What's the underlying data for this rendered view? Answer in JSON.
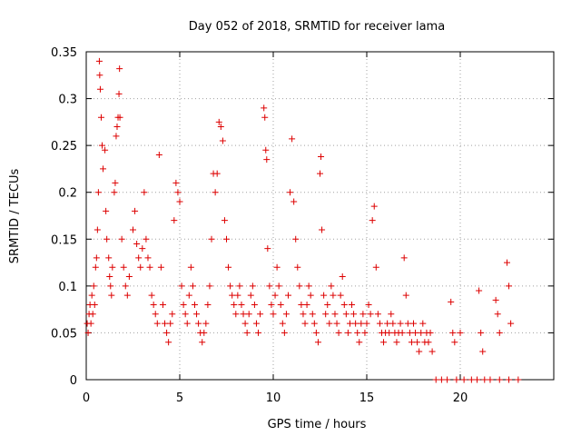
{
  "chart_data": {
    "type": "scatter",
    "title": "Day 052 of 2018, SRMTID for receiver lama",
    "xlabel": "GPS time / hours",
    "ylabel": "SRMTID / TECUs",
    "xlim": [
      0,
      25
    ],
    "ylim": [
      0,
      0.35
    ],
    "xticks": [
      0,
      5,
      10,
      15,
      20
    ],
    "xtick_labels": [
      "0",
      "5",
      "10",
      "15",
      "20"
    ],
    "yticks": [
      0,
      0.05,
      0.1,
      0.15,
      0.2,
      0.25,
      0.3,
      0.35
    ],
    "ytick_labels": [
      "0",
      "0.05",
      "0.1",
      "0.15",
      "0.2",
      "0.25",
      "0.3",
      "0.35"
    ],
    "grid": true,
    "marker": "+",
    "color": "#dd0000",
    "series": [
      {
        "name": "SRMTID",
        "points": [
          [
            0.05,
            0.06
          ],
          [
            0.1,
            0.05
          ],
          [
            0.15,
            0.07
          ],
          [
            0.2,
            0.08
          ],
          [
            0.25,
            0.06
          ],
          [
            0.3,
            0.09
          ],
          [
            0.35,
            0.07
          ],
          [
            0.4,
            0.1
          ],
          [
            0.45,
            0.08
          ],
          [
            0.5,
            0.12
          ],
          [
            0.55,
            0.13
          ],
          [
            0.6,
            0.16
          ],
          [
            0.65,
            0.2
          ],
          [
            0.7,
            0.34
          ],
          [
            0.72,
            0.325
          ],
          [
            0.75,
            0.31
          ],
          [
            0.8,
            0.28
          ],
          [
            0.85,
            0.25
          ],
          [
            0.9,
            0.225
          ],
          [
            1.0,
            0.245
          ],
          [
            1.05,
            0.18
          ],
          [
            1.1,
            0.15
          ],
          [
            1.2,
            0.13
          ],
          [
            1.25,
            0.11
          ],
          [
            1.3,
            0.1
          ],
          [
            1.35,
            0.09
          ],
          [
            1.4,
            0.12
          ],
          [
            1.5,
            0.2
          ],
          [
            1.55,
            0.21
          ],
          [
            1.6,
            0.26
          ],
          [
            1.65,
            0.27
          ],
          [
            1.7,
            0.28
          ],
          [
            1.75,
            0.305
          ],
          [
            1.78,
            0.332
          ],
          [
            1.8,
            0.28
          ],
          [
            1.9,
            0.15
          ],
          [
            2.0,
            0.12
          ],
          [
            2.1,
            0.1
          ],
          [
            2.2,
            0.09
          ],
          [
            2.3,
            0.11
          ],
          [
            2.5,
            0.16
          ],
          [
            2.6,
            0.18
          ],
          [
            2.7,
            0.145
          ],
          [
            2.8,
            0.13
          ],
          [
            2.9,
            0.12
          ],
          [
            3.0,
            0.14
          ],
          [
            3.1,
            0.2
          ],
          [
            3.2,
            0.15
          ],
          [
            3.3,
            0.13
          ],
          [
            3.4,
            0.12
          ],
          [
            3.5,
            0.09
          ],
          [
            3.6,
            0.08
          ],
          [
            3.7,
            0.07
          ],
          [
            3.8,
            0.06
          ],
          [
            3.9,
            0.24
          ],
          [
            4.0,
            0.12
          ],
          [
            4.1,
            0.08
          ],
          [
            4.2,
            0.06
          ],
          [
            4.3,
            0.05
          ],
          [
            4.4,
            0.04
          ],
          [
            4.5,
            0.06
          ],
          [
            4.6,
            0.07
          ],
          [
            4.7,
            0.17
          ],
          [
            4.8,
            0.21
          ],
          [
            4.9,
            0.2
          ],
          [
            5.0,
            0.19
          ],
          [
            5.1,
            0.1
          ],
          [
            5.2,
            0.08
          ],
          [
            5.3,
            0.07
          ],
          [
            5.4,
            0.06
          ],
          [
            5.5,
            0.09
          ],
          [
            5.6,
            0.12
          ],
          [
            5.7,
            0.1
          ],
          [
            5.8,
            0.08
          ],
          [
            5.9,
            0.07
          ],
          [
            6.0,
            0.06
          ],
          [
            6.1,
            0.05
          ],
          [
            6.2,
            0.04
          ],
          [
            6.3,
            0.05
          ],
          [
            6.4,
            0.06
          ],
          [
            6.5,
            0.08
          ],
          [
            6.6,
            0.1
          ],
          [
            6.7,
            0.15
          ],
          [
            6.8,
            0.22
          ],
          [
            6.9,
            0.2
          ],
          [
            7.0,
            0.22
          ],
          [
            7.1,
            0.275
          ],
          [
            7.2,
            0.27
          ],
          [
            7.3,
            0.255
          ],
          [
            7.4,
            0.17
          ],
          [
            7.5,
            0.15
          ],
          [
            7.6,
            0.12
          ],
          [
            7.7,
            0.1
          ],
          [
            7.8,
            0.09
          ],
          [
            7.9,
            0.08
          ],
          [
            8.0,
            0.07
          ],
          [
            8.1,
            0.09
          ],
          [
            8.2,
            0.1
          ],
          [
            8.3,
            0.08
          ],
          [
            8.4,
            0.07
          ],
          [
            8.5,
            0.06
          ],
          [
            8.6,
            0.05
          ],
          [
            8.7,
            0.07
          ],
          [
            8.8,
            0.09
          ],
          [
            8.9,
            0.1
          ],
          [
            9.0,
            0.08
          ],
          [
            9.1,
            0.06
          ],
          [
            9.2,
            0.05
          ],
          [
            9.3,
            0.07
          ],
          [
            9.5,
            0.29
          ],
          [
            9.55,
            0.28
          ],
          [
            9.6,
            0.245
          ],
          [
            9.65,
            0.235
          ],
          [
            9.7,
            0.14
          ],
          [
            9.8,
            0.1
          ],
          [
            9.9,
            0.08
          ],
          [
            10.0,
            0.07
          ],
          [
            10.1,
            0.09
          ],
          [
            10.2,
            0.12
          ],
          [
            10.3,
            0.1
          ],
          [
            10.4,
            0.08
          ],
          [
            10.5,
            0.06
          ],
          [
            10.6,
            0.05
          ],
          [
            10.7,
            0.07
          ],
          [
            10.8,
            0.09
          ],
          [
            10.9,
            0.2
          ],
          [
            11.0,
            0.257
          ],
          [
            11.1,
            0.19
          ],
          [
            11.2,
            0.15
          ],
          [
            11.3,
            0.12
          ],
          [
            11.4,
            0.1
          ],
          [
            11.5,
            0.08
          ],
          [
            11.6,
            0.07
          ],
          [
            11.7,
            0.06
          ],
          [
            11.8,
            0.08
          ],
          [
            11.9,
            0.1
          ],
          [
            12.0,
            0.09
          ],
          [
            12.1,
            0.07
          ],
          [
            12.2,
            0.06
          ],
          [
            12.3,
            0.05
          ],
          [
            12.4,
            0.04
          ],
          [
            12.5,
            0.22
          ],
          [
            12.55,
            0.238
          ],
          [
            12.6,
            0.16
          ],
          [
            12.7,
            0.09
          ],
          [
            12.8,
            0.07
          ],
          [
            12.9,
            0.08
          ],
          [
            13.0,
            0.06
          ],
          [
            13.1,
            0.1
          ],
          [
            13.2,
            0.09
          ],
          [
            13.3,
            0.07
          ],
          [
            13.4,
            0.06
          ],
          [
            13.5,
            0.05
          ],
          [
            13.6,
            0.09
          ],
          [
            13.7,
            0.11
          ],
          [
            13.8,
            0.08
          ],
          [
            13.9,
            0.07
          ],
          [
            14.0,
            0.05
          ],
          [
            14.1,
            0.06
          ],
          [
            14.2,
            0.08
          ],
          [
            14.3,
            0.07
          ],
          [
            14.4,
            0.06
          ],
          [
            14.5,
            0.05
          ],
          [
            14.6,
            0.04
          ],
          [
            14.7,
            0.06
          ],
          [
            14.8,
            0.07
          ],
          [
            14.9,
            0.05
          ],
          [
            15.0,
            0.06
          ],
          [
            15.1,
            0.08
          ],
          [
            15.2,
            0.07
          ],
          [
            15.3,
            0.17
          ],
          [
            15.4,
            0.185
          ],
          [
            15.5,
            0.12
          ],
          [
            15.6,
            0.07
          ],
          [
            15.7,
            0.06
          ],
          [
            15.8,
            0.05
          ],
          [
            15.9,
            0.04
          ],
          [
            16.0,
            0.05
          ],
          [
            16.1,
            0.06
          ],
          [
            16.2,
            0.05
          ],
          [
            16.3,
            0.07
          ],
          [
            16.4,
            0.06
          ],
          [
            16.5,
            0.05
          ],
          [
            16.6,
            0.04
          ],
          [
            16.7,
            0.05
          ],
          [
            16.8,
            0.06
          ],
          [
            16.9,
            0.05
          ],
          [
            17.0,
            0.13
          ],
          [
            17.1,
            0.09
          ],
          [
            17.2,
            0.06
          ],
          [
            17.3,
            0.05
          ],
          [
            17.4,
            0.04
          ],
          [
            17.5,
            0.06
          ],
          [
            17.6,
            0.05
          ],
          [
            17.7,
            0.04
          ],
          [
            17.8,
            0.03
          ],
          [
            17.9,
            0.05
          ],
          [
            18.0,
            0.06
          ],
          [
            18.1,
            0.04
          ],
          [
            18.2,
            0.05
          ],
          [
            18.3,
            0.04
          ],
          [
            18.4,
            0.05
          ],
          [
            18.5,
            0.03
          ],
          [
            19.5,
            0.083
          ],
          [
            19.6,
            0.05
          ],
          [
            19.7,
            0.04
          ],
          [
            20.0,
            0.05
          ],
          [
            21.0,
            0.095
          ],
          [
            21.1,
            0.05
          ],
          [
            21.2,
            0.03
          ],
          [
            21.9,
            0.085
          ],
          [
            22.0,
            0.07
          ],
          [
            22.1,
            0.05
          ],
          [
            22.5,
            0.125
          ],
          [
            22.6,
            0.1
          ],
          [
            22.7,
            0.06
          ],
          [
            18.7,
            0.0
          ],
          [
            19.0,
            0.0
          ],
          [
            19.3,
            0.0
          ],
          [
            19.8,
            0.0
          ],
          [
            20.2,
            0.0
          ],
          [
            20.6,
            0.0
          ],
          [
            20.9,
            0.0
          ],
          [
            21.3,
            0.0
          ],
          [
            21.6,
            0.0
          ],
          [
            22.1,
            0.0
          ],
          [
            22.6,
            0.0
          ],
          [
            23.1,
            0.0
          ]
        ]
      }
    ]
  }
}
